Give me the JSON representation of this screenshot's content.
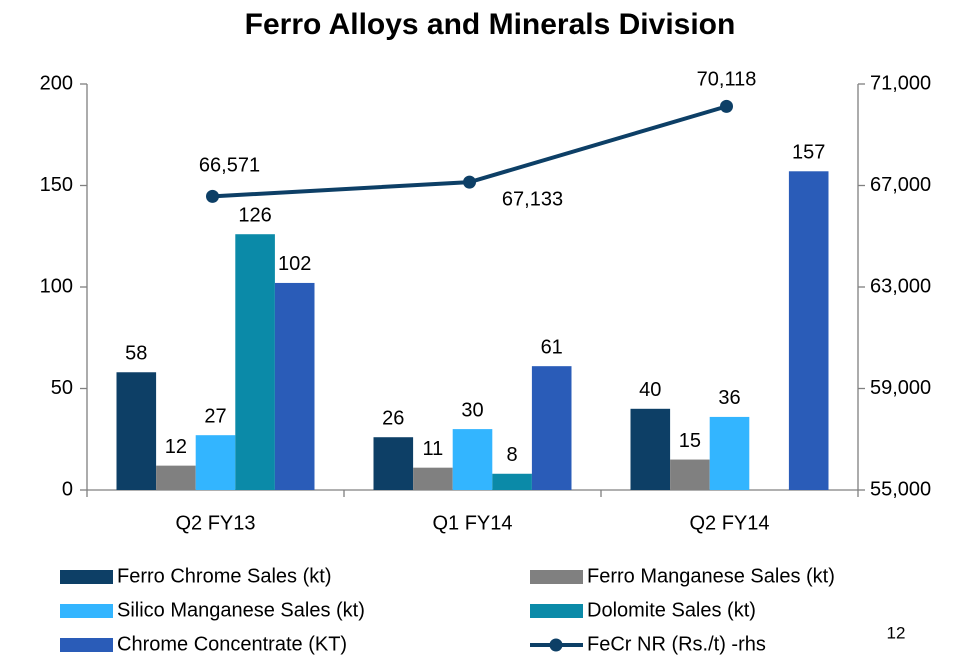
{
  "chart_data": {
    "type": "bar",
    "title": "Ferro Alloys and Minerals Division",
    "categories": [
      "Q2 FY13",
      "Q1 FY14",
      "Q2 FY14"
    ],
    "series": [
      {
        "name": "Ferro Chrome Sales (kt)",
        "color": "#0d3f66",
        "values": [
          58,
          26,
          40
        ]
      },
      {
        "name": "Ferro Manganese Sales (kt)",
        "color": "#808080",
        "values": [
          12,
          11,
          15
        ]
      },
      {
        "name": "Silico Manganese Sales (kt)",
        "color": "#33b5ff",
        "values": [
          27,
          30,
          36
        ]
      },
      {
        "name": "Dolomite Sales (kt)",
        "color": "#0b8aa8",
        "values": [
          126,
          8,
          null
        ]
      },
      {
        "name": "Chrome Concentrate (KT)",
        "color": "#2a5cb8",
        "values": [
          102,
          61,
          157
        ]
      },
      {
        "name": "FeCr NR (Rs./t) -rhs",
        "color": "#0d3f66",
        "type": "line",
        "axis": "y2",
        "values": [
          66571,
          67133,
          70118
        ],
        "value_labels": [
          "66,571",
          "67,133",
          "70,118"
        ]
      }
    ],
    "ylim": [
      0,
      200
    ],
    "yticks": [
      0,
      50,
      100,
      150,
      200
    ],
    "y2lim": [
      55000,
      71000
    ],
    "y2ticks": [
      {
        "value": 55000,
        "label": "55,000"
      },
      {
        "value": 59000,
        "label": "59,000"
      },
      {
        "value": 63000,
        "label": "63,000"
      },
      {
        "value": 67000,
        "label": "67,000"
      },
      {
        "value": 71000,
        "label": "71,000"
      }
    ],
    "grid": false,
    "legend": "bottom"
  },
  "page_number": "12"
}
